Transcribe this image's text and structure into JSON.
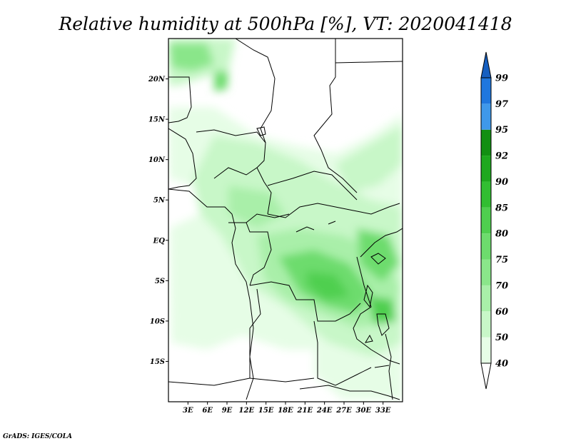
{
  "title": "Relative humidity at 500hPa [%], VT: 2020041418",
  "credit": "GrADS: IGES/COLA",
  "map": {
    "lon_min": 0,
    "lon_max": 36,
    "lat_min": -20,
    "lat_max": 25,
    "lat_ticks": [
      {
        "value": 20,
        "label": "20N"
      },
      {
        "value": 15,
        "label": "15N"
      },
      {
        "value": 10,
        "label": "10N"
      },
      {
        "value": 5,
        "label": "5N"
      },
      {
        "value": 0,
        "label": "EQ"
      },
      {
        "value": -5,
        "label": "5S"
      },
      {
        "value": -10,
        "label": "10S"
      },
      {
        "value": -15,
        "label": "15S"
      }
    ],
    "lon_ticks": [
      {
        "value": 3,
        "label": "3E"
      },
      {
        "value": 6,
        "label": "6E"
      },
      {
        "value": 9,
        "label": "9E"
      },
      {
        "value": 12,
        "label": "12E"
      },
      {
        "value": 15,
        "label": "15E"
      },
      {
        "value": 18,
        "label": "18E"
      },
      {
        "value": 21,
        "label": "21E"
      },
      {
        "value": 24,
        "label": "24E"
      },
      {
        "value": 27,
        "label": "27E"
      },
      {
        "value": 30,
        "label": "30E"
      },
      {
        "value": 33,
        "label": "33E"
      }
    ]
  },
  "colorbar": {
    "levels": [
      "40",
      "50",
      "60",
      "70",
      "75",
      "80",
      "85",
      "90",
      "92",
      "95",
      "97",
      "99"
    ],
    "colors": [
      "#ffffff",
      "#e6fde6",
      "#c8f7c8",
      "#a9efa9",
      "#8ae68a",
      "#6ddc6d",
      "#4fcf4f",
      "#32be32",
      "#1ea81e",
      "#128f12",
      "#3f98ea",
      "#1f77de",
      "#165fc0"
    ]
  }
}
